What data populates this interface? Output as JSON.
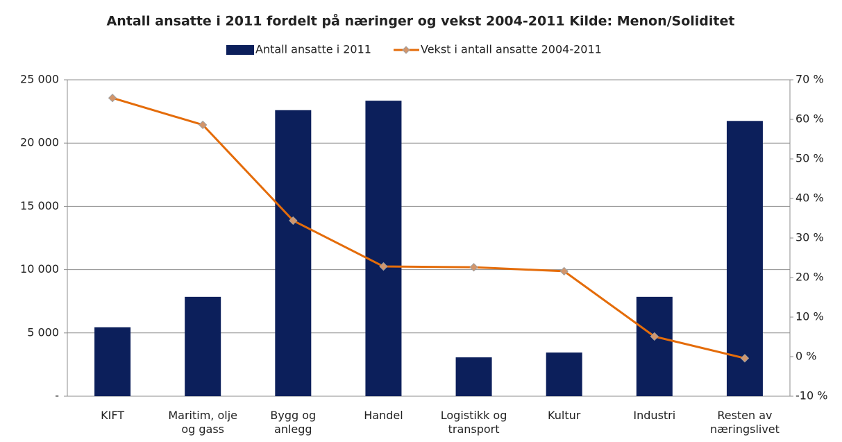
{
  "chart_data": {
    "type": "bar_line",
    "title": "Antall ansatte i 2011 fordelt på næringer og vekst 2004-2011 Kilde: Menon/Soliditet",
    "categories": [
      "KIFT",
      "Maritim, olje og gass",
      "Bygg og anlegg",
      "Handel",
      "Logistikk og transport",
      "Kultur",
      "Industri",
      "Resten av næringslivet"
    ],
    "series": [
      {
        "name": "Antall ansatte i 2011",
        "type": "bar",
        "color": "#0c1f5b",
        "values": [
          5450,
          7850,
          22600,
          23350,
          3070,
          3450,
          7850,
          21750
        ]
      },
      {
        "name": "Vekst i antall ansatte 2004-2011",
        "type": "line",
        "axis": "y2",
        "color": "#e46c0a",
        "marker_color": "#d3956a",
        "values": [
          65.4,
          58.6,
          34.4,
          22.8,
          22.6,
          21.6,
          5.1,
          -0.4
        ]
      }
    ],
    "ylim": [
      0,
      25000
    ],
    "yticks": [
      {
        "value": 0,
        "label": "-"
      },
      {
        "value": 5000,
        "label": "5 000"
      },
      {
        "value": 10000,
        "label": "10 000"
      },
      {
        "value": 15000,
        "label": "15 000"
      },
      {
        "value": 20000,
        "label": "20 000"
      },
      {
        "value": 25000,
        "label": "25 000"
      }
    ],
    "y2lim": [
      -10,
      70
    ],
    "y2ticks": [
      {
        "value": -10,
        "label": "-10 %"
      },
      {
        "value": 0,
        "label": "0 %"
      },
      {
        "value": 10,
        "label": "10 %"
      },
      {
        "value": 20,
        "label": "20 %"
      },
      {
        "value": 30,
        "label": "30 %"
      },
      {
        "value": 40,
        "label": "40 %"
      },
      {
        "value": 50,
        "label": "50 %"
      },
      {
        "value": 60,
        "label": "60 %"
      },
      {
        "value": 70,
        "label": "70 %"
      }
    ],
    "grid": true,
    "legend": "top"
  }
}
